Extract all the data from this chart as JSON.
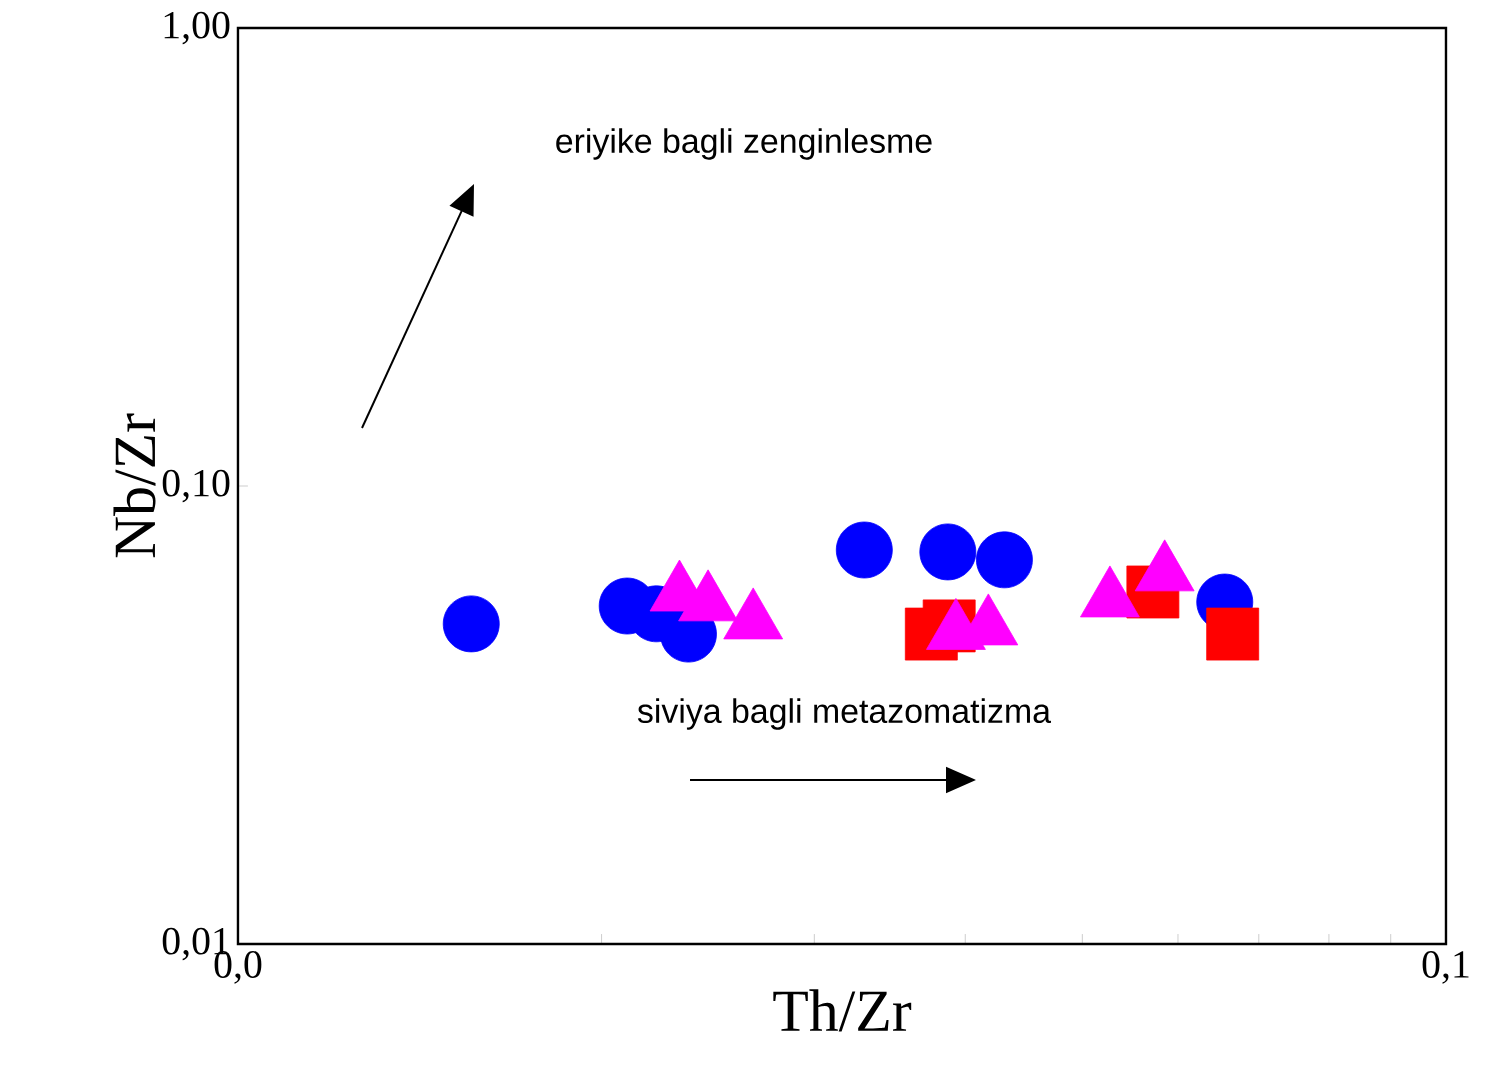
{
  "chart_data": {
    "type": "scatter",
    "xlabel": "Th/Zr",
    "ylabel": "Nb/Zr",
    "log": "xy",
    "grid": false,
    "xlim": [
      0.01,
      0.1
    ],
    "ylim": [
      0.01,
      1
    ],
    "xticks": [
      {
        "value": 0.01,
        "label": "0,0"
      },
      {
        "value": 0.02,
        "label": null
      },
      {
        "value": 0.03,
        "label": null
      },
      {
        "value": 0.04,
        "label": null
      },
      {
        "value": 0.05,
        "label": null
      },
      {
        "value": 0.06,
        "label": null
      },
      {
        "value": 0.07,
        "label": null
      },
      {
        "value": 0.08,
        "label": null
      },
      {
        "value": 0.09,
        "label": null
      },
      {
        "value": 0.1,
        "label": "0,1"
      }
    ],
    "yticks": [
      {
        "value": 0.01,
        "label": "0,01"
      },
      {
        "value": 0.1,
        "label": "0,10"
      },
      {
        "value": 1,
        "label": "1,00"
      }
    ],
    "annotations": [
      "eriyike bagli zenginlesme",
      "siviya bagli metazomatizma"
    ],
    "series": [
      {
        "color": "#0000ff",
        "marker": "circle",
        "x": [
          0.0156,
          0.021,
          0.0222,
          0.0236,
          0.033,
          0.0387,
          0.0431,
          0.0656
        ],
        "values": [
          0.05,
          0.0547,
          0.0526,
          0.0475,
          0.0725,
          0.0718,
          0.069,
          0.0558
        ]
      },
      {
        "color": "#ff0000",
        "marker": "square",
        "x": [
          0.0375,
          0.0388,
          0.0572,
          0.0666
        ],
        "values": [
          0.0475,
          0.0495,
          0.0587,
          0.0475
        ]
      },
      {
        "color": "#ff00ff",
        "marker": "triangle",
        "x": [
          0.0232,
          0.0245,
          0.0267,
          0.0393,
          0.0418,
          0.0527,
          0.0585
        ],
        "values": [
          0.0581,
          0.0553,
          0.0505,
          0.0479,
          0.049,
          0.0564,
          0.0643
        ]
      }
    ]
  }
}
